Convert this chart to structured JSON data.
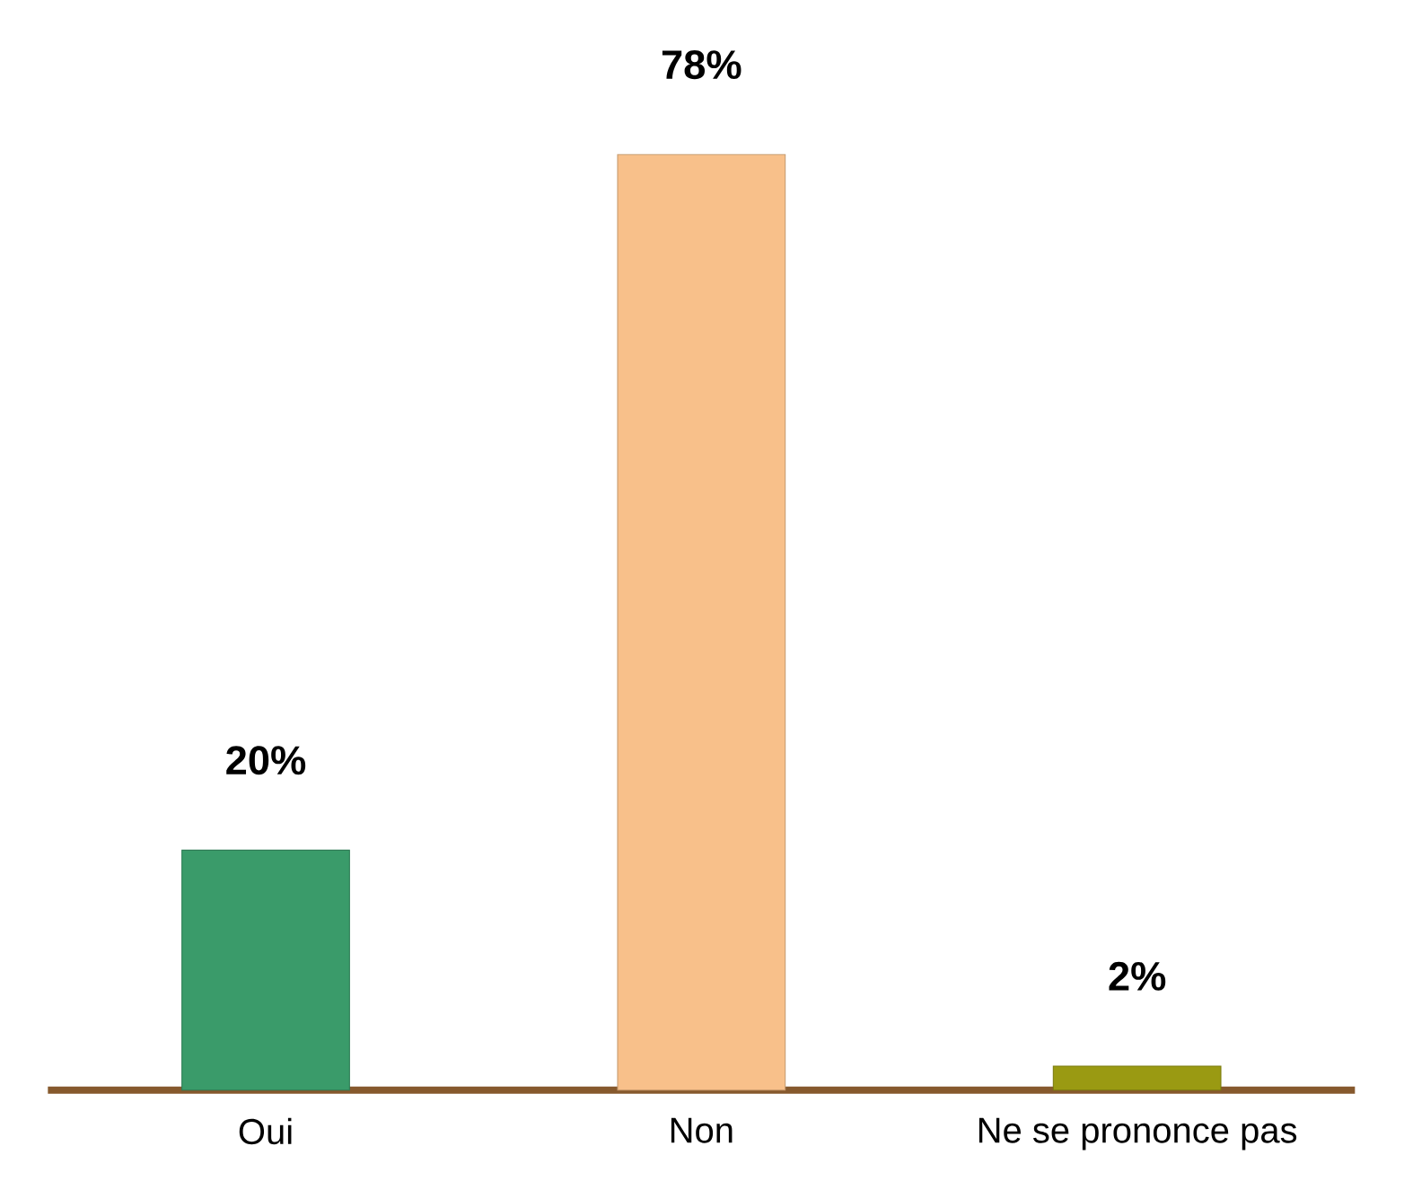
{
  "chart_data": {
    "type": "bar",
    "categories": [
      "Oui",
      "Non",
      "Ne se prononce pas"
    ],
    "values": [
      20,
      78,
      2
    ],
    "colors": [
      "#3a9b6a",
      "#f8c08a",
      "#9a9a12"
    ],
    "value_labels": [
      "20%",
      "78%",
      "2%"
    ]
  }
}
